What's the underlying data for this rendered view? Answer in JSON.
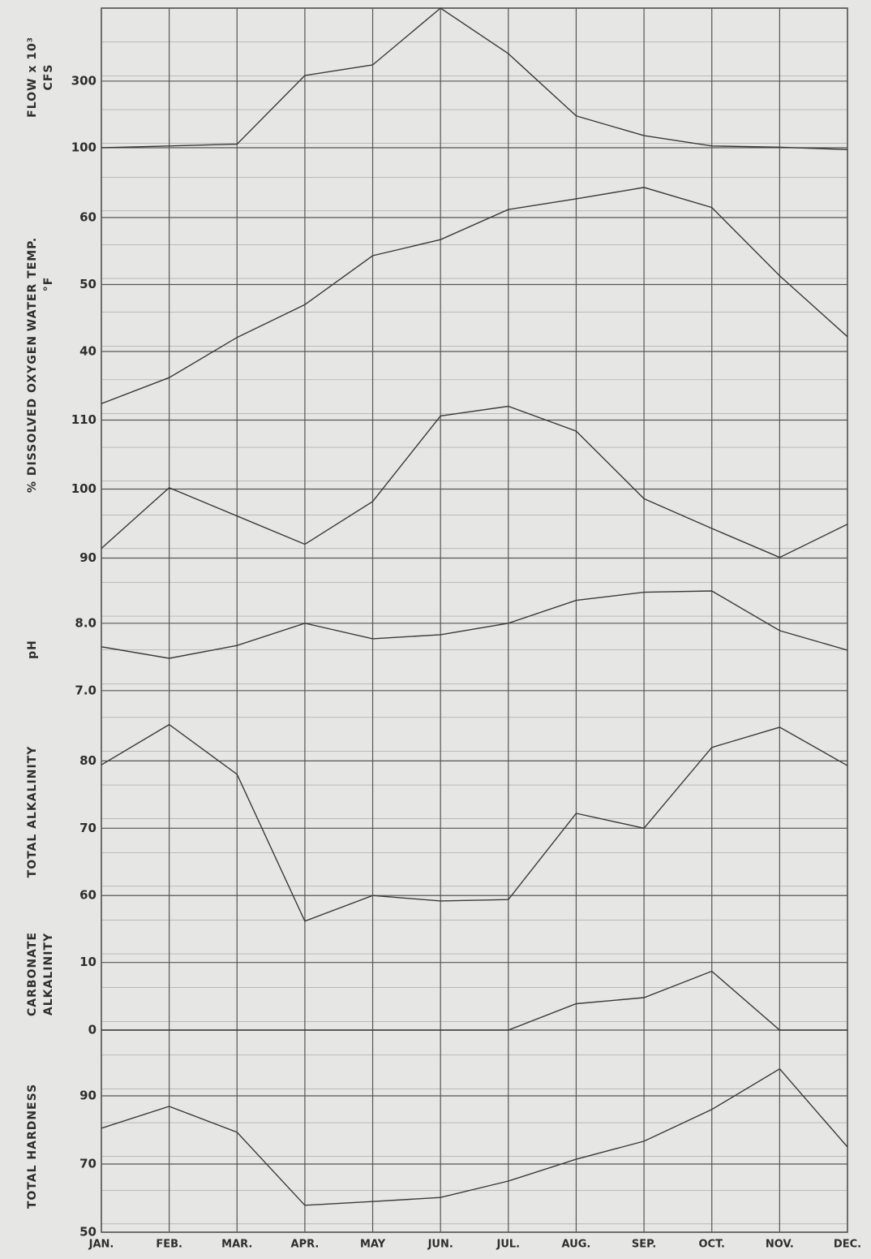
{
  "chart_data": [
    {
      "type": "line",
      "ylabel": [
        "FLOW x 10³",
        "CFS"
      ],
      "ylim": [
        100,
        1000
      ],
      "log": true,
      "yticks": [
        100,
        300
      ],
      "color": "#3a3a3a",
      "values": [
        100,
        103,
        106,
        329,
        392,
        1000,
        472,
        169,
        122,
        103,
        101,
        97
      ]
    },
    {
      "type": "line",
      "ylabel": [
        "WATER TEMP.",
        "°F"
      ],
      "ylim": [
        30,
        70
      ],
      "yticks": [
        40,
        50,
        60
      ],
      "color": "#3a3a3a",
      "values": [
        32.2,
        36.1,
        42.1,
        47.0,
        54.3,
        56.7,
        61.2,
        62.8,
        64.5,
        61.5,
        51.3,
        42.2
      ]
    },
    {
      "type": "line",
      "ylabel": [
        "% DISSOLVED OXYGEN"
      ],
      "ylim": [
        85,
        115
      ],
      "yticks": [
        90,
        100,
        110
      ],
      "color": "#3a3a3a",
      "values": [
        91.4,
        100.2,
        96.1,
        92.0,
        98.2,
        110.6,
        112.0,
        108.4,
        98.6,
        94.3,
        90.1,
        94.9
      ]
    },
    {
      "type": "line",
      "ylabel": [
        "pH"
      ],
      "ylim": [
        6.6,
        8.6
      ],
      "yticks": [
        {
          "value": 7,
          "label": "7.0"
        },
        {
          "value": 8,
          "label": "8.0"
        }
      ],
      "color": "#3a3a3a",
      "values": [
        7.65,
        7.48,
        7.67,
        8.0,
        7.77,
        7.83,
        8.0,
        8.34,
        8.46,
        8.48,
        7.89,
        7.6
      ]
    },
    {
      "type": "line",
      "ylabel": [
        "TOTAL ALKALINITY"
      ],
      "ylim": [
        54,
        88
      ],
      "yticks": [
        60,
        70,
        80
      ],
      "color": "#3a3a3a",
      "values": [
        79.4,
        85.4,
        78.0,
        56.2,
        60,
        59.2,
        59.4,
        72.2,
        70,
        82.0,
        85.0,
        79.3
      ]
    },
    {
      "type": "line",
      "ylabel": [
        "CARBONATE",
        "ALKALINITY"
      ],
      "ylim": [
        0,
        12
      ],
      "yticks": [
        0,
        10
      ],
      "color": "#3a3a3a",
      "values": [
        0,
        0,
        0,
        0,
        0,
        0,
        0,
        3.9,
        4.8,
        8.7,
        0,
        0
      ]
    },
    {
      "type": "line",
      "ylabel": [
        "TOTAL HARDNESS"
      ],
      "ylim": [
        50,
        100
      ],
      "yticks": [
        50,
        70,
        90
      ],
      "color": "#3a3a3a",
      "categories": [
        "JAN.",
        "FEB.",
        "MAR.",
        "APR.",
        "MAY",
        "JUN.",
        "JUL.",
        "AUG.",
        "SEP.",
        "OCT.",
        "NOV.",
        "DEC."
      ],
      "values": [
        80.5,
        86.9,
        79.3,
        57.9,
        59.0,
        60.2,
        65.0,
        71.4,
        76.7,
        86.0,
        97.9,
        75.0
      ]
    }
  ]
}
